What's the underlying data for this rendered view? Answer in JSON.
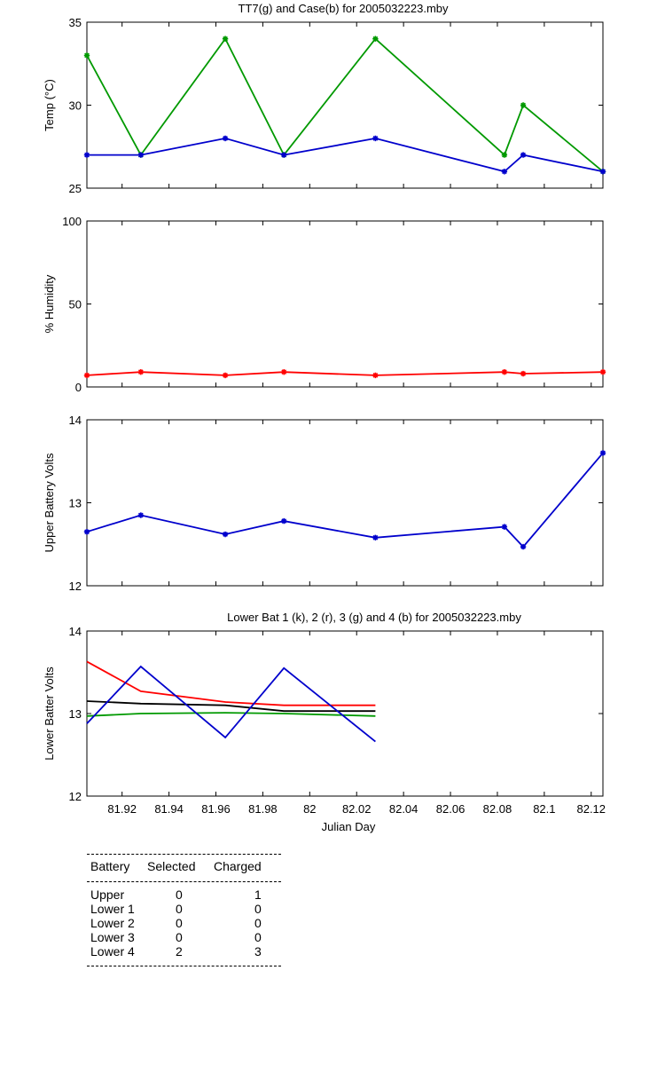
{
  "chart_data": [
    {
      "type": "line",
      "title": "TT7(g) and Case(b) for 2005032223.mby",
      "ylabel": "Temp  (°C)",
      "xlim": [
        81.905,
        82.125
      ],
      "ylim": [
        25,
        35
      ],
      "yticks": [
        25,
        30,
        35
      ],
      "x": [
        81.905,
        81.928,
        81.964,
        81.989,
        82.028,
        82.083,
        82.091,
        82.125
      ],
      "series": [
        {
          "color": "#009900",
          "marker": "*",
          "values": [
            33,
            27,
            34,
            27,
            34,
            27,
            30,
            26
          ]
        },
        {
          "color": "#0000cc",
          "marker": "*",
          "values": [
            27,
            27,
            28,
            27,
            28,
            26,
            27,
            26
          ]
        }
      ]
    },
    {
      "type": "line",
      "ylabel": "% Humidity",
      "xlim": [
        81.905,
        82.125
      ],
      "ylim": [
        0,
        100
      ],
      "yticks": [
        0,
        50,
        100
      ],
      "x": [
        81.905,
        81.928,
        81.964,
        81.989,
        82.028,
        82.083,
        82.091,
        82.125
      ],
      "series": [
        {
          "color": "#ff0000",
          "marker": "*",
          "values": [
            7,
            9,
            7,
            9,
            7,
            9,
            8,
            9
          ]
        }
      ]
    },
    {
      "type": "line",
      "ylabel": "Upper Battery Volts",
      "xlim": [
        81.905,
        82.125
      ],
      "ylim": [
        12,
        14
      ],
      "yticks": [
        12,
        13,
        14
      ],
      "x": [
        81.905,
        81.928,
        81.964,
        81.989,
        82.028,
        82.083,
        82.091,
        82.125
      ],
      "series": [
        {
          "color": "#0000cc",
          "marker": "*",
          "values": [
            12.65,
            12.85,
            12.62,
            12.78,
            12.58,
            12.71,
            12.47,
            13.6
          ]
        }
      ]
    },
    {
      "type": "line",
      "title": "Lower Bat 1 (k), 2 (r), 3 (g) and 4 (b) for 2005032223.mby",
      "xlabel": "Julian Day",
      "ylabel": "Lower Batter Volts",
      "xlim": [
        81.905,
        82.125
      ],
      "ylim": [
        12,
        14
      ],
      "yticks": [
        12,
        13,
        14
      ],
      "xticks": [
        "81.92",
        "81.94",
        "81.96",
        "81.98",
        "82",
        "82.02",
        "82.04",
        "82.06",
        "82.08",
        "82.1",
        "82.12"
      ],
      "x": [
        81.905,
        81.928,
        81.964,
        81.989,
        82.028
      ],
      "series": [
        {
          "color": "#000000",
          "values": [
            13.15,
            13.12,
            13.1,
            13.03,
            13.03
          ]
        },
        {
          "color": "#ff0000",
          "values": [
            13.63,
            13.27,
            13.14,
            13.1,
            13.1
          ]
        },
        {
          "color": "#009900",
          "values": [
            12.97,
            13.0,
            13.01,
            13.0,
            12.97
          ]
        },
        {
          "color": "#0000cc",
          "values": [
            12.88,
            13.57,
            12.71,
            13.55,
            12.66
          ]
        }
      ]
    }
  ],
  "battery_table": {
    "headers": [
      "Battery",
      "Selected",
      "Charged"
    ],
    "rows": [
      {
        "battery": "Upper",
        "selected": "0",
        "charged": "1"
      },
      {
        "battery": "Lower 1",
        "selected": "0",
        "charged": "0"
      },
      {
        "battery": "Lower 2",
        "selected": "0",
        "charged": "0"
      },
      {
        "battery": "Lower 3",
        "selected": "0",
        "charged": "0"
      },
      {
        "battery": "Lower 4",
        "selected": "2",
        "charged": "3"
      }
    ]
  }
}
